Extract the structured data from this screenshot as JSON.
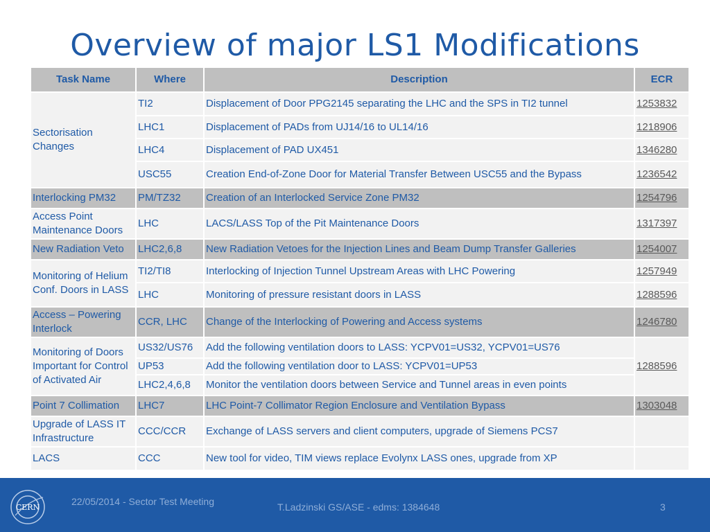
{
  "title": "Overview of major LS1 Modifications",
  "table": {
    "headers": [
      "Task Name",
      "Where",
      "Description",
      "ECR"
    ],
    "groups": {
      "g1": "Sectorisation Changes",
      "g2": "Interlocking PM32",
      "g3": "Access Point Maintenance Doors",
      "g4": "New Radiation Veto",
      "g5": "Monitoring of Helium Conf. Doors in LASS",
      "g6": "Access – Powering Interlock",
      "g7": "Monitoring of Doors Important for Control of Activated Air",
      "g8": "Point 7 Collimation",
      "g9": "Upgrade of LASS IT Infrastructure",
      "g10": "LACS"
    },
    "rows": [
      {
        "where": "TI2",
        "description": "Displacement of Door PPG2145 separating the LHC and the SPS in TI2 tunnel",
        "ecr": "1253832"
      },
      {
        "where": "LHC1",
        "description": "Displacement of PADs from UJ14/16 to UL14/16",
        "ecr": "1218906"
      },
      {
        "where": "LHC4",
        "description": "Displacement of PAD UX451",
        "ecr": "1346280"
      },
      {
        "where": "USC55",
        "description": "Creation End-of-Zone Door for Material Transfer Between USC55 and the Bypass",
        "ecr": "1236542"
      },
      {
        "where": "PM/TZ32",
        "description": "Creation of an Interlocked Service Zone PM32",
        "ecr": "1254796"
      },
      {
        "where": "LHC",
        "description": "LACS/LASS Top of the Pit Maintenance Doors",
        "ecr": "1317397"
      },
      {
        "where": "LHC2,6,8",
        "description": "New Radiation Vetoes for the Injection Lines and Beam Dump Transfer Galleries",
        "ecr": "1254007"
      },
      {
        "where": "TI2/TI8",
        "description": "Interlocking of Injection Tunnel Upstream Areas with LHC Powering",
        "ecr": "1257949"
      },
      {
        "where": "LHC",
        "description": "Monitoring of pressure resistant doors in LASS",
        "ecr": "1288596"
      },
      {
        "where": "CCR, LHC",
        "description": "Change of the Interlocking of Powering and Access systems",
        "ecr": "1246780"
      },
      {
        "where": "US32/US76",
        "description": "Add the following ventilation doors to LASS: YCPV01=US32, YCPV01=US76",
        "ecr": "1288596"
      },
      {
        "where": "UP53",
        "description": "Add the following ventilation door to LASS: YCPV01=UP53",
        "ecr": ""
      },
      {
        "where": "LHC2,4,6,8",
        "description": "Monitor the ventilation doors between Service and Tunnel areas in even points",
        "ecr": ""
      },
      {
        "where": "LHC7",
        "description": "LHC Point-7 Collimator Region Enclosure and Ventilation Bypass",
        "ecr": "1303048"
      },
      {
        "where": "CCC/CCR",
        "description": "Exchange of LASS servers and client computers, upgrade of Siemens PCS7",
        "ecr": ""
      },
      {
        "where": "CCC",
        "description": "New tool for video,  TIM views replace Evolynx LASS ones, upgrade from XP",
        "ecr": ""
      }
    ]
  },
  "footer": {
    "logo_text": "CERN",
    "date": "22/05/2014 - Sector Test Meeting",
    "center": "T.Ladzinski GS/ASE - edms: 1384648",
    "page": "3"
  },
  "colors": {
    "title": "#1f5aa6",
    "footer_bg": "#1f5aa6",
    "row_light": "#f2f2f2",
    "row_dark": "#bfbfbf"
  }
}
